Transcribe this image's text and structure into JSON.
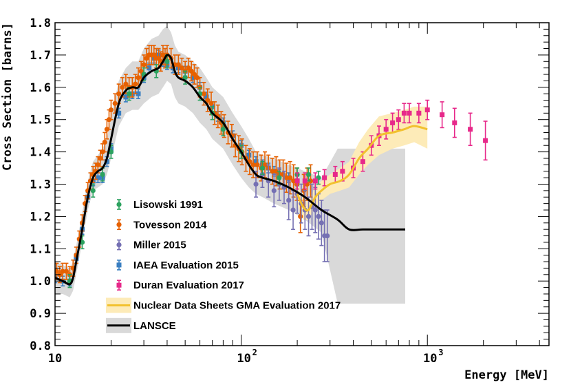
{
  "chart_data": {
    "type": "scatter",
    "title": "",
    "xlabel": "Energy [MeV]",
    "ylabel": "Cross Section [barns]",
    "xscale": "log",
    "xlim": [
      10,
      4500
    ],
    "ylim": [
      0.8,
      1.8
    ],
    "yticks": [
      "0.8",
      "0.9",
      "1.0",
      "1.1",
      "1.2",
      "1.3",
      "1.4",
      "1.5",
      "1.6",
      "1.7",
      "1.8"
    ],
    "xticks": [
      {
        "value": 10,
        "base": "10",
        "exp": ""
      },
      {
        "value": 100,
        "base": "10",
        "exp": "2"
      },
      {
        "value": 1000,
        "base": "10",
        "exp": "3"
      }
    ],
    "legend_position": "center-left",
    "series": [
      {
        "name": "Lisowski 1991",
        "color": "#2ca25f",
        "marker": "circle",
        "x": [
          12,
          14,
          16,
          18,
          20,
          25,
          30,
          35,
          40,
          50,
          60,
          70,
          80,
          100,
          130,
          160,
          200,
          230,
          260
        ],
        "y": [
          1.0,
          1.12,
          1.28,
          1.33,
          1.4,
          1.58,
          1.64,
          1.65,
          1.68,
          1.63,
          1.58,
          1.52,
          1.47,
          1.4,
          1.35,
          1.32,
          1.33,
          1.33,
          1.32
        ],
        "err": [
          0.02,
          0.02,
          0.02,
          0.02,
          0.02,
          0.02,
          0.02,
          0.02,
          0.02,
          0.02,
          0.02,
          0.02,
          0.02,
          0.02,
          0.02,
          0.02,
          0.02,
          0.02,
          0.02
        ]
      },
      {
        "name": "Tovesson 2014",
        "color": "#e66101",
        "marker": "circle",
        "x": [
          10.2,
          10.6,
          11.0,
          11.5,
          12.0,
          12.5,
          13.0,
          13.5,
          14.0,
          14.5,
          15.0,
          15.5,
          16.0,
          16.5,
          17.0,
          17.5,
          18.0,
          18.5,
          19.0,
          19.5,
          20.0,
          21.0,
          22.0,
          23.0,
          24.0,
          25.0,
          26.0,
          27.0,
          28.0,
          29.0,
          30.0,
          31.0,
          32.0,
          33.0,
          34.0,
          35.0,
          36.0,
          37.0,
          38.0,
          39.0,
          40.0,
          42.0,
          44.0,
          46.0,
          48.0,
          50.0,
          52.0,
          54.0,
          56.0,
          58.0,
          60.0,
          63.0,
          66.0,
          69.0,
          72.0,
          75.0,
          78.0,
          81.0,
          85.0,
          89.0,
          93.0,
          97.0,
          101.0,
          106.0,
          111.0,
          116.0,
          122.0,
          128.0,
          134.0,
          140.0,
          147.0,
          154.0,
          161.0,
          168.0,
          175.0,
          183.0,
          191.0,
          199.0,
          208.0,
          217.0,
          226.0,
          236.0
        ],
        "y": [
          1.03,
          1.02,
          1.03,
          1.03,
          1.02,
          1.04,
          1.08,
          1.13,
          1.18,
          1.24,
          1.28,
          1.31,
          1.33,
          1.34,
          1.36,
          1.38,
          1.4,
          1.43,
          1.47,
          1.5,
          1.53,
          1.55,
          1.58,
          1.6,
          1.61,
          1.6,
          1.6,
          1.61,
          1.63,
          1.65,
          1.67,
          1.69,
          1.7,
          1.7,
          1.7,
          1.69,
          1.69,
          1.68,
          1.7,
          1.69,
          1.7,
          1.69,
          1.67,
          1.67,
          1.66,
          1.65,
          1.66,
          1.65,
          1.64,
          1.63,
          1.6,
          1.58,
          1.56,
          1.55,
          1.52,
          1.51,
          1.49,
          1.48,
          1.46,
          1.45,
          1.42,
          1.41,
          1.4,
          1.38,
          1.37,
          1.36,
          1.36,
          1.35,
          1.36,
          1.35,
          1.34,
          1.34,
          1.33,
          1.33,
          1.32,
          1.32,
          1.31,
          1.3,
          1.2,
          1.28,
          1.3,
          1.31
        ],
        "err": [
          0.025,
          0.025,
          0.025,
          0.025,
          0.025,
          0.025,
          0.025,
          0.025,
          0.025,
          0.025,
          0.025,
          0.025,
          0.025,
          0.025,
          0.025,
          0.025,
          0.025,
          0.03,
          0.03,
          0.03,
          0.03,
          0.03,
          0.03,
          0.03,
          0.03,
          0.03,
          0.03,
          0.03,
          0.03,
          0.03,
          0.03,
          0.03,
          0.03,
          0.03,
          0.03,
          0.03,
          0.03,
          0.03,
          0.03,
          0.03,
          0.03,
          0.03,
          0.03,
          0.03,
          0.03,
          0.03,
          0.03,
          0.03,
          0.03,
          0.03,
          0.03,
          0.035,
          0.035,
          0.035,
          0.035,
          0.035,
          0.035,
          0.035,
          0.035,
          0.035,
          0.035,
          0.04,
          0.04,
          0.04,
          0.04,
          0.04,
          0.04,
          0.04,
          0.04,
          0.04,
          0.04,
          0.045,
          0.045,
          0.045,
          0.045,
          0.05,
          0.05,
          0.05,
          0.05,
          0.05,
          0.05,
          0.05
        ]
      },
      {
        "name": "Miller 2015",
        "color": "#7570b3",
        "marker": "circle",
        "x": [
          120,
          130,
          140,
          150,
          160,
          170,
          180,
          190,
          200,
          210,
          220,
          230,
          240,
          250,
          260,
          270,
          280,
          290
        ],
        "y": [
          1.3,
          1.33,
          1.31,
          1.28,
          1.3,
          1.29,
          1.25,
          1.22,
          1.27,
          1.24,
          1.22,
          1.2,
          1.23,
          1.22,
          1.2,
          1.18,
          1.14,
          1.14
        ],
        "err": [
          0.04,
          0.04,
          0.05,
          0.05,
          0.05,
          0.05,
          0.06,
          0.06,
          0.06,
          0.06,
          0.06,
          0.06,
          0.07,
          0.07,
          0.07,
          0.07,
          0.08,
          0.08
        ]
      },
      {
        "name": "IAEA Evaluation 2015",
        "color": "#3a7fc1",
        "marker": "square",
        "x": [
          10.0,
          11.0,
          12.0,
          13.0,
          14.0,
          15.0,
          16.0,
          17.0,
          18.0,
          19.0,
          20.0,
          22.0,
          24.0,
          26.0,
          28.0,
          30.0,
          32.0,
          34.0,
          36.0,
          38.0,
          40.0,
          43.0,
          46.0,
          50.0,
          55.0,
          60.0,
          65.0,
          70.0,
          75.0,
          80.0,
          90.0,
          100.0,
          110.0,
          120.0,
          130.0,
          140.0,
          150.0,
          160.0,
          180.0,
          200.0
        ],
        "y": [
          1.01,
          1.0,
          1.0,
          1.07,
          1.16,
          1.26,
          1.31,
          1.32,
          1.32,
          1.37,
          1.41,
          1.52,
          1.57,
          1.58,
          1.58,
          1.63,
          1.66,
          1.69,
          1.7,
          1.68,
          1.67,
          1.66,
          1.66,
          1.65,
          1.63,
          1.6,
          1.57,
          1.54,
          1.51,
          1.49,
          1.45,
          1.42,
          1.39,
          1.37,
          1.36,
          1.35,
          1.34,
          1.33,
          1.32,
          1.31
        ],
        "err": [
          0.015,
          0.015,
          0.015,
          0.015,
          0.015,
          0.015,
          0.015,
          0.015,
          0.015,
          0.015,
          0.015,
          0.015,
          0.015,
          0.015,
          0.015,
          0.015,
          0.015,
          0.015,
          0.015,
          0.015,
          0.015,
          0.015,
          0.015,
          0.015,
          0.015,
          0.015,
          0.015,
          0.015,
          0.015,
          0.015,
          0.015,
          0.015,
          0.015,
          0.015,
          0.015,
          0.015,
          0.015,
          0.015,
          0.015,
          0.015
        ]
      },
      {
        "name": "Duran Evaluation 2017",
        "color": "#e7298a",
        "marker": "square",
        "x": [
          200,
          220,
          250,
          280,
          320,
          350,
          400,
          450,
          500,
          550,
          600,
          650,
          700,
          750,
          800,
          900,
          1000,
          1200,
          1400,
          1700,
          2050
        ],
        "y": [
          1.31,
          1.31,
          1.31,
          1.32,
          1.33,
          1.34,
          1.35,
          1.37,
          1.42,
          1.45,
          1.47,
          1.49,
          1.5,
          1.52,
          1.52,
          1.52,
          1.53,
          1.515,
          1.49,
          1.47,
          1.435
        ],
        "err": [
          0.025,
          0.025,
          0.025,
          0.025,
          0.025,
          0.03,
          0.03,
          0.03,
          0.03,
          0.03,
          0.03,
          0.03,
          0.03,
          0.03,
          0.03,
          0.03,
          0.03,
          0.04,
          0.045,
          0.05,
          0.06
        ]
      }
    ],
    "curves": [
      {
        "name": "Nuclear Data Sheets GMA Evaluation 2017",
        "color": "#f2c12e",
        "band_color": "#fdebb8",
        "x": [
          200,
          215,
          230,
          250,
          270,
          300,
          340,
          380,
          430,
          480,
          550,
          650,
          750,
          850,
          1000
        ],
        "y": [
          1.27,
          1.23,
          1.22,
          1.26,
          1.28,
          1.3,
          1.31,
          1.33,
          1.38,
          1.41,
          1.45,
          1.46,
          1.47,
          1.48,
          1.47
        ],
        "band_low": [
          1.24,
          1.19,
          1.19,
          1.23,
          1.25,
          1.27,
          1.28,
          1.29,
          1.33,
          1.36,
          1.39,
          1.41,
          1.42,
          1.43,
          1.41
        ],
        "band_high": [
          1.3,
          1.27,
          1.25,
          1.29,
          1.31,
          1.33,
          1.35,
          1.37,
          1.43,
          1.47,
          1.51,
          1.52,
          1.53,
          1.54,
          1.54
        ]
      },
      {
        "name": "LANSCE",
        "color": "#000000",
        "band_color": "#d9d9d9",
        "x": [
          10,
          11,
          12,
          12.5,
          13,
          14,
          15,
          16,
          17,
          18,
          19,
          20,
          22,
          24,
          26,
          28,
          30,
          33,
          36,
          38,
          40,
          42,
          44,
          46,
          50,
          55,
          60,
          65,
          70,
          80,
          90,
          100,
          110,
          120,
          130,
          150,
          180,
          220,
          270,
          330,
          380,
          450,
          550,
          650,
          760
        ],
        "y": [
          1.01,
          1.0,
          0.99,
          1.01,
          1.06,
          1.16,
          1.26,
          1.32,
          1.34,
          1.35,
          1.38,
          1.44,
          1.55,
          1.59,
          1.6,
          1.6,
          1.63,
          1.65,
          1.66,
          1.68,
          1.7,
          1.69,
          1.65,
          1.63,
          1.62,
          1.6,
          1.57,
          1.55,
          1.52,
          1.49,
          1.44,
          1.4,
          1.36,
          1.33,
          1.32,
          1.31,
          1.29,
          1.26,
          1.22,
          1.19,
          1.16,
          1.16,
          1.16,
          1.16,
          1.16
        ],
        "band_low": [
          0.96,
          0.96,
          0.95,
          0.97,
          1.02,
          1.12,
          1.22,
          1.28,
          1.29,
          1.3,
          1.33,
          1.38,
          1.48,
          1.52,
          1.53,
          1.53,
          1.55,
          1.57,
          1.58,
          1.6,
          1.62,
          1.61,
          1.57,
          1.55,
          1.54,
          1.52,
          1.49,
          1.47,
          1.44,
          1.41,
          1.36,
          1.32,
          1.29,
          1.27,
          1.26,
          1.24,
          1.22,
          1.19,
          1.15,
          0.93,
          0.93,
          0.93,
          0.93,
          0.93,
          0.93
        ],
        "band_high": [
          1.06,
          1.05,
          1.04,
          1.06,
          1.11,
          1.21,
          1.31,
          1.37,
          1.39,
          1.41,
          1.44,
          1.51,
          1.62,
          1.66,
          1.68,
          1.68,
          1.72,
          1.75,
          1.76,
          1.78,
          1.79,
          1.77,
          1.73,
          1.71,
          1.7,
          1.68,
          1.66,
          1.63,
          1.6,
          1.57,
          1.52,
          1.48,
          1.44,
          1.4,
          1.39,
          1.38,
          1.36,
          1.34,
          1.32,
          1.41,
          1.41,
          1.41,
          1.41,
          1.41,
          1.41
        ]
      }
    ]
  }
}
